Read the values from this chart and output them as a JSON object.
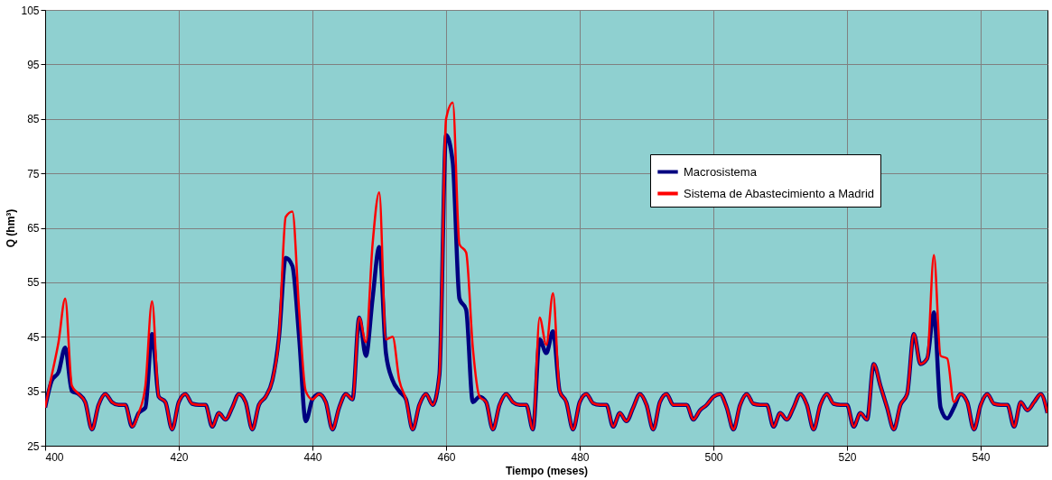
{
  "chart_data": {
    "type": "line",
    "xlabel": "Tiempo (meses)",
    "ylabel": "Q (hm³)",
    "x": [
      400,
      401,
      402,
      403,
      404,
      405,
      406,
      407,
      408,
      409,
      410,
      411,
      412,
      413,
      414,
      415,
      416,
      417,
      418,
      419,
      420,
      421,
      422,
      423,
      424,
      425,
      426,
      427,
      428,
      429,
      430,
      431,
      432,
      433,
      434,
      435,
      436,
      437,
      438,
      439,
      440,
      441,
      442,
      443,
      444,
      445,
      446,
      447,
      448,
      449,
      450,
      451,
      452,
      453,
      454,
      455,
      456,
      457,
      458,
      459,
      460,
      461,
      462,
      463,
      464,
      465,
      466,
      467,
      468,
      469,
      470,
      471,
      472,
      473,
      474,
      475,
      476,
      477,
      478,
      479,
      480,
      481,
      482,
      483,
      484,
      485,
      486,
      487,
      488,
      489,
      490,
      491,
      492,
      493,
      494,
      495,
      496,
      497,
      498,
      499,
      500,
      501,
      502,
      503,
      504,
      505,
      506,
      507,
      508,
      509,
      510,
      511,
      512,
      513,
      514,
      515,
      516,
      517,
      518,
      519,
      520,
      521,
      522,
      523,
      524,
      525,
      526,
      527,
      528,
      529,
      530,
      531,
      532,
      533,
      534,
      535,
      536,
      537,
      538,
      539,
      540,
      541,
      542,
      543,
      544,
      545,
      546,
      547,
      548,
      549,
      550
    ],
    "series": [
      {
        "name": "Macrosistema",
        "color": "#000080",
        "values": [
          32,
          37,
          38.5,
          43,
          35,
          34.5,
          33,
          28,
          32.5,
          34.5,
          33,
          32.5,
          32.5,
          28.5,
          31,
          32,
          45.5,
          34,
          33,
          28,
          33,
          34.5,
          32.7,
          32.5,
          32.5,
          28.5,
          31,
          29.8,
          32,
          34.5,
          33,
          28,
          32.5,
          34,
          37,
          45,
          59.5,
          58,
          45,
          29.5,
          33.5,
          34.5,
          33,
          28,
          32,
          34.5,
          33.5,
          48.5,
          41.5,
          52,
          61.5,
          42,
          37,
          35,
          33.5,
          28,
          32.5,
          34.5,
          32.5,
          38,
          82,
          77,
          52,
          50,
          33,
          34,
          33,
          28,
          32.5,
          34.5,
          33,
          32.5,
          32.5,
          28,
          44.5,
          42,
          46,
          35,
          33,
          28,
          33,
          34.5,
          32.8,
          32.5,
          32.5,
          28.5,
          31,
          29.5,
          32,
          34.5,
          32.5,
          28,
          33,
          34.5,
          32.5,
          32.5,
          32.5,
          29.8,
          31.5,
          32.5,
          34,
          34.5,
          32,
          28,
          32.5,
          34.5,
          32.7,
          32.5,
          32.5,
          28.5,
          31,
          29.8,
          32,
          34.5,
          32.5,
          28,
          32.5,
          34.5,
          32.7,
          32.5,
          32.5,
          28.5,
          31,
          29.8,
          40,
          36,
          32,
          28,
          32.5,
          34.5,
          45.5,
          40,
          41,
          49.5,
          32,
          30,
          32,
          34.5,
          33,
          28,
          32.5,
          34.5,
          32.7,
          32.5,
          32.5,
          28.5,
          33,
          31.5,
          33,
          34.5,
          31
        ]
      },
      {
        "name": "Sistema de Abastecimiento a Madrid",
        "color": "#ff0000",
        "values": [
          32,
          38,
          44,
          52,
          36,
          34.5,
          33,
          28,
          32.5,
          34.5,
          33,
          32.5,
          32.5,
          28.5,
          31,
          36,
          51.5,
          34,
          33,
          28,
          33,
          34.5,
          32.7,
          32.5,
          32.5,
          28.5,
          31,
          29.8,
          32,
          34.5,
          33,
          28,
          32.5,
          34,
          37,
          45,
          67,
          68,
          50,
          35,
          33.5,
          34.5,
          33,
          28,
          32,
          34.5,
          33.5,
          48.5,
          44,
          62,
          71.5,
          44.5,
          45,
          37,
          33.5,
          28,
          32.5,
          34.5,
          32.5,
          38,
          85,
          88,
          62,
          60.5,
          43,
          34,
          33,
          28,
          32.5,
          34.5,
          33,
          32.5,
          32.5,
          28,
          48.5,
          43.5,
          53,
          35,
          33,
          28,
          33,
          34.5,
          32.8,
          32.5,
          32.5,
          28.5,
          31,
          29.5,
          32,
          34.5,
          32.5,
          28,
          33,
          34.5,
          32.5,
          32.5,
          32.5,
          29.8,
          31.5,
          32.5,
          34,
          34.5,
          32,
          28,
          32.5,
          34.5,
          32.7,
          32.5,
          32.5,
          28.5,
          31,
          29.8,
          32,
          34.5,
          32.5,
          28,
          32.5,
          34.5,
          32.7,
          32.5,
          32.5,
          28.5,
          31,
          29.8,
          40,
          36,
          32,
          28,
          32.5,
          34.5,
          45.5,
          40,
          41,
          60,
          41.5,
          41,
          33,
          34.5,
          33,
          28,
          32.5,
          34.5,
          32.7,
          32.5,
          32.5,
          28.5,
          33,
          31.5,
          33,
          34.5,
          31
        ]
      }
    ],
    "xlim": [
      400,
      550
    ],
    "xticks": [
      400,
      420,
      440,
      460,
      480,
      500,
      520,
      540
    ],
    "ylim": [
      25,
      105
    ],
    "yticks": [
      25,
      35,
      45,
      55,
      65,
      75,
      85,
      95,
      105
    ],
    "grid": true,
    "legend": "right",
    "marker": "none",
    "line_style": "solid"
  }
}
